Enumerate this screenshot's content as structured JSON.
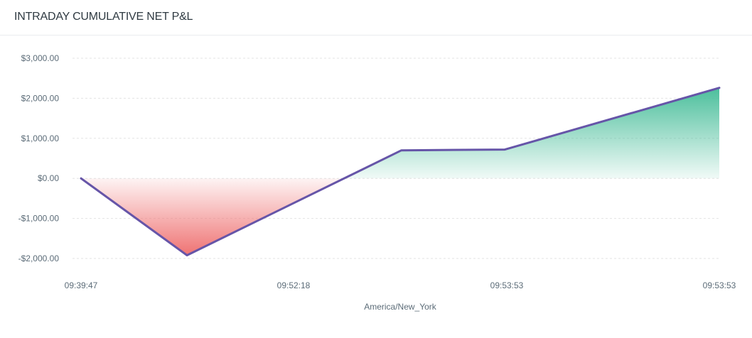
{
  "header": {
    "title": "INTRADAY CUMULATIVE NET P&L"
  },
  "colors": {
    "line": "#6655a8",
    "positive_fill": "#4cbf9c",
    "negative_fill": "#ef7373",
    "grid": "#e3e3e3",
    "tick_text": "#5c6c78",
    "title_text": "#2f3a42"
  },
  "chart_data": {
    "type": "area",
    "title": "INTRADAY CUMULATIVE NET P&L",
    "xlabel": "America/New_York",
    "ylabel": "",
    "x_tick_labels": [
      "09:39:47",
      "09:52:18",
      "09:53:53",
      "09:53:53"
    ],
    "y_tick_labels": [
      "$3,000.00",
      "$2,000.00",
      "$1,000.00",
      "$0.00",
      "-$1,000.00",
      "-$2,000.00"
    ],
    "y_ticks": [
      3000,
      2000,
      1000,
      0,
      -1000,
      -2000
    ],
    "ylim": [
      -2000,
      3000
    ],
    "grid": true,
    "legend": "none",
    "fill": "green above zero, red below zero, gradient fading toward zero line",
    "series": [
      {
        "name": "Cumulative Net P&L",
        "x_position_fraction": [
          0.0,
          0.166,
          0.502,
          0.664,
          1.0
        ],
        "values": [
          0,
          -1920,
          700,
          720,
          2260
        ]
      }
    ]
  }
}
